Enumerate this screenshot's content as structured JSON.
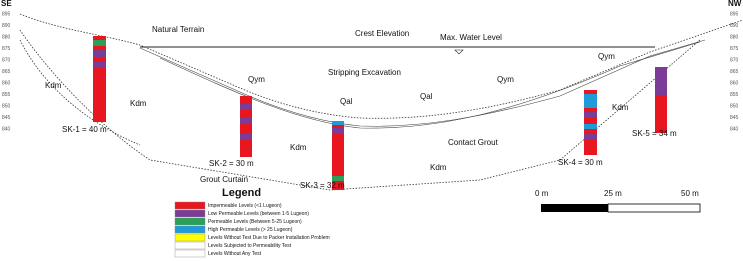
{
  "header": {
    "left": "SE",
    "right": "NW"
  },
  "elevations": [
    "895",
    "890",
    "880",
    "875",
    "870",
    "865",
    "860",
    "855",
    "850",
    "845",
    "840"
  ],
  "labels": {
    "natural_terrain": "Natural Terrain",
    "crest": "Crest Elevation",
    "water": "Max. Water Level",
    "stripping": "Stripping Excavation",
    "grout_curtain": "Grout Curtain",
    "contact_grout": "Contact Grout",
    "kdm": "Kdm",
    "qym": "Qym",
    "qal": "Qal"
  },
  "boreholes": [
    "SK-1 = 40 m",
    "SK-2 = 30 m",
    "SK-3 = 32 m",
    "SK-4 = 30 m",
    "SK-5 = 34 m"
  ],
  "legend": {
    "title": "Legend",
    "items": [
      "Impermeable Levels (<1 Lugeon)",
      "Low Permeable Levels (between 1-5 Lugeon)",
      "Permeable Levels (Between 5-25 Lugeon)",
      "High Permeable Levels (> 25 Lugeon)",
      "Levels Without Test Due to Packer Installation Problem",
      "Levels Subjected to Permeability Test",
      "Levels Without Any Test"
    ]
  },
  "scale": [
    "0 m",
    "25 m",
    "50 m"
  ]
}
